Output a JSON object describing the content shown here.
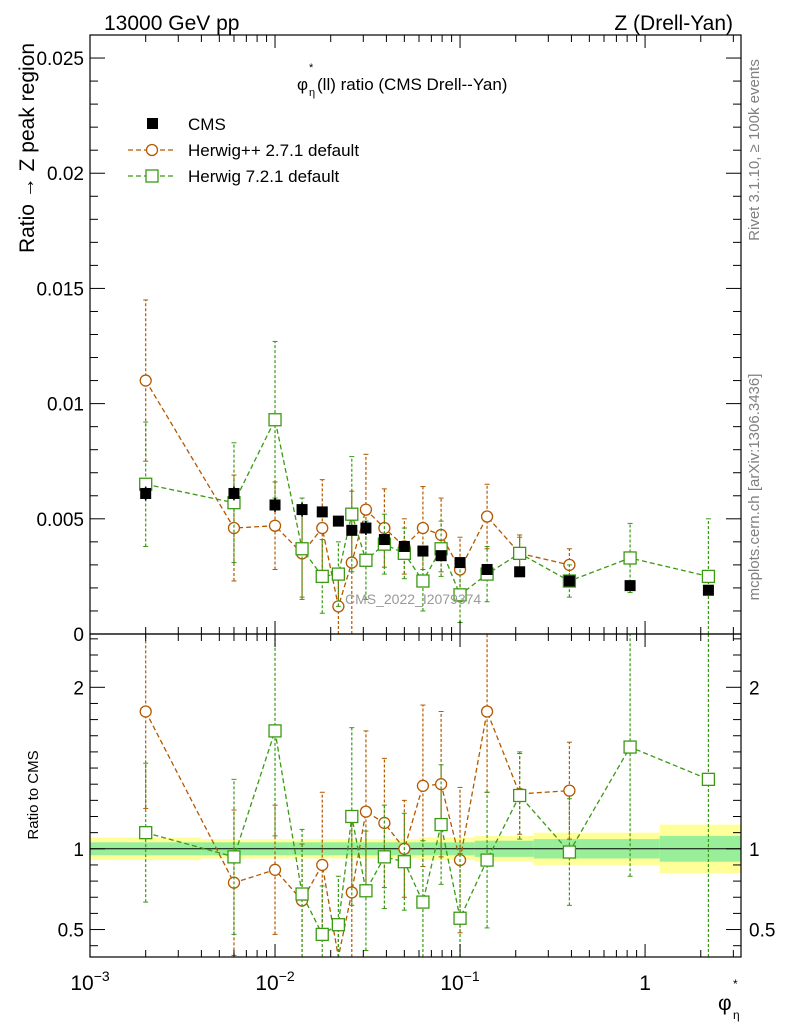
{
  "header": {
    "left": "13000 GeV pp",
    "right": "Z (Drell-Yan)",
    "side_rivet": "Rivet 3.1.10, ≥ 100k events",
    "side_mcplots": "mcplots.cern.ch [arXiv:1306.3436]",
    "watermark": "CMS_2022_I2079374"
  },
  "chart_data": [
    {
      "type": "scatter",
      "panel": "main",
      "title_main": "φ",
      "title_sup": "*",
      "title_sub": "η",
      "title_rest": "(ll) ratio (CMS Drell--Yan)",
      "ylabel": "Ratio → Z peak region",
      "xscale": "log",
      "xlim": [
        0.001,
        3.3
      ],
      "ylim": [
        0,
        0.026
      ],
      "yticks": [
        {
          "v": 0,
          "label": "0"
        },
        {
          "v": 0.005,
          "label": "0.005"
        },
        {
          "v": 0.01,
          "label": "0.01"
        },
        {
          "v": 0.015,
          "label": "0.015"
        },
        {
          "v": 0.02,
          "label": "0.02"
        },
        {
          "v": 0.025,
          "label": "0.025"
        }
      ],
      "legend": [
        {
          "label": "CMS",
          "color": "#000000",
          "marker": "filled-square"
        },
        {
          "label": "Herwig++ 2.7.1 default",
          "color": "#b35900",
          "marker": "circle"
        },
        {
          "label": "Herwig 7.2.1 default",
          "color": "#3a9a14",
          "marker": "square"
        }
      ],
      "series": [
        {
          "name": "CMS",
          "color": "#000000",
          "marker": "filled-square",
          "x": [
            0.002,
            0.006,
            0.01,
            0.014,
            0.018,
            0.022,
            0.026,
            0.031,
            0.039,
            0.05,
            0.063,
            0.079,
            0.1,
            0.14,
            0.21,
            0.39,
            0.83,
            2.2
          ],
          "y": [
            0.0061,
            0.0061,
            0.0056,
            0.0054,
            0.0053,
            0.0049,
            0.0045,
            0.0046,
            0.0041,
            0.0038,
            0.0036,
            0.0034,
            0.0031,
            0.0028,
            0.0027,
            0.0023,
            0.0021,
            0.0019
          ],
          "err": [
            0.0003,
            0.0003,
            0.0003,
            0.0003,
            0.0002,
            0.0002,
            0.0002,
            0.0003,
            0.0002,
            0.0002,
            0.0002,
            0.0002,
            0.0002,
            0.0002,
            0.0002,
            0.0002,
            0.0002,
            0.0002
          ]
        },
        {
          "name": "Herwig++ 2.7.1 default",
          "color": "#b35900",
          "marker": "circle",
          "x": [
            0.002,
            0.006,
            0.01,
            0.014,
            0.018,
            0.022,
            0.026,
            0.031,
            0.039,
            0.05,
            0.063,
            0.079,
            0.1,
            0.14,
            0.21,
            0.39
          ],
          "y": [
            0.011,
            0.0046,
            0.0047,
            0.0035,
            0.0046,
            0.0012,
            0.0031,
            0.0054,
            0.0046,
            0.0038,
            0.0046,
            0.0043,
            0.0028,
            0.0051,
            0.0035,
            0.003
          ],
          "err": [
            0.0035,
            0.0023,
            0.0019,
            0.0019,
            0.0021,
            0.0012,
            0.0031,
            0.0024,
            0.0017,
            0.0012,
            0.0018,
            0.0016,
            0.0014,
            0.0014,
            0.0008,
            0.0007
          ]
        },
        {
          "name": "Herwig 7.2.1 default",
          "color": "#3a9a14",
          "marker": "square",
          "x": [
            0.002,
            0.006,
            0.01,
            0.014,
            0.018,
            0.022,
            0.026,
            0.031,
            0.039,
            0.05,
            0.063,
            0.079,
            0.1,
            0.14,
            0.21,
            0.39,
            0.83,
            2.2
          ],
          "y": [
            0.0065,
            0.0057,
            0.0093,
            0.0037,
            0.0025,
            0.0026,
            0.0052,
            0.0032,
            0.0039,
            0.0035,
            0.0023,
            0.0037,
            0.0017,
            0.0026,
            0.0035,
            0.0023,
            0.0033,
            0.0025
          ],
          "err": [
            0.0027,
            0.0026,
            0.0034,
            0.0022,
            0.0016,
            0.0014,
            0.0025,
            0.0017,
            0.0013,
            0.0011,
            0.0013,
            0.0012,
            0.0012,
            0.0012,
            0.0007,
            0.0007,
            0.0015,
            0.0025
          ]
        }
      ]
    },
    {
      "type": "scatter",
      "panel": "ratio",
      "ylabel": "Ratio to CMS",
      "xlabel_main": "φ",
      "xlabel_sup": "*",
      "xlabel_sub": "η",
      "xscale": "log",
      "xlim": [
        0.001,
        3.3
      ],
      "ylim": [
        0.33,
        2.33
      ],
      "yticks": [
        {
          "v": 0.5,
          "label": "0.5"
        },
        {
          "v": 1,
          "label": "1"
        },
        {
          "v": 2,
          "label": "2"
        }
      ],
      "xticks": [
        {
          "v": 0.001,
          "base": "10",
          "exp": "−3"
        },
        {
          "v": 0.01,
          "base": "10",
          "exp": "−2"
        },
        {
          "v": 0.1,
          "base": "10",
          "exp": "−1"
        },
        {
          "v": 1,
          "base": "1",
          "exp": ""
        }
      ],
      "bands": [
        {
          "x0": 0.001,
          "x1": 0.004,
          "inner": 0.04,
          "outer": 0.07
        },
        {
          "x0": 0.004,
          "x1": 0.012,
          "inner": 0.04,
          "outer": 0.06
        },
        {
          "x0": 0.012,
          "x1": 0.06,
          "inner": 0.04,
          "outer": 0.06
        },
        {
          "x0": 0.06,
          "x1": 0.12,
          "inner": 0.04,
          "outer": 0.07
        },
        {
          "x0": 0.12,
          "x1": 0.25,
          "inner": 0.05,
          "outer": 0.08
        },
        {
          "x0": 0.25,
          "x1": 1.2,
          "inner": 0.06,
          "outer": 0.1
        },
        {
          "x0": 1.2,
          "x1": 3.3,
          "inner": 0.08,
          "outer": 0.15
        }
      ],
      "series": [
        {
          "name": "Herwig++ 2.7.1 default",
          "color": "#b35900",
          "marker": "circle",
          "x": [
            0.002,
            0.006,
            0.01,
            0.014,
            0.018,
            0.022,
            0.026,
            0.031,
            0.039,
            0.05,
            0.063,
            0.079,
            0.1,
            0.14,
            0.21,
            0.39
          ],
          "y": [
            1.85,
            0.79,
            0.87,
            0.68,
            0.9,
            0.25,
            0.73,
            1.23,
            1.16,
            1.0,
            1.39,
            1.4,
            0.93,
            1.85,
            1.34,
            1.36
          ],
          "err": [
            0.6,
            0.45,
            0.4,
            0.35,
            0.45,
            0.3,
            0.45,
            0.5,
            0.4,
            0.3,
            0.5,
            0.45,
            0.45,
            0.5,
            0.25,
            0.3
          ]
        },
        {
          "name": "Herwig 7.2.1 default",
          "color": "#3a9a14",
          "marker": "square",
          "x": [
            0.002,
            0.006,
            0.01,
            0.014,
            0.018,
            0.022,
            0.026,
            0.031,
            0.039,
            0.05,
            0.063,
            0.079,
            0.1,
            0.14,
            0.21,
            0.39,
            0.83,
            2.2
          ],
          "y": [
            1.1,
            0.95,
            1.73,
            0.72,
            0.47,
            0.53,
            1.2,
            0.74,
            0.95,
            0.92,
            0.67,
            1.15,
            0.57,
            0.93,
            1.33,
            0.98,
            1.63,
            1.43
          ],
          "err": [
            0.43,
            0.48,
            0.65,
            0.4,
            0.3,
            0.3,
            0.55,
            0.37,
            0.32,
            0.3,
            0.38,
            0.37,
            0.4,
            0.42,
            0.27,
            0.33,
            0.8,
            1.4
          ]
        }
      ]
    }
  ]
}
